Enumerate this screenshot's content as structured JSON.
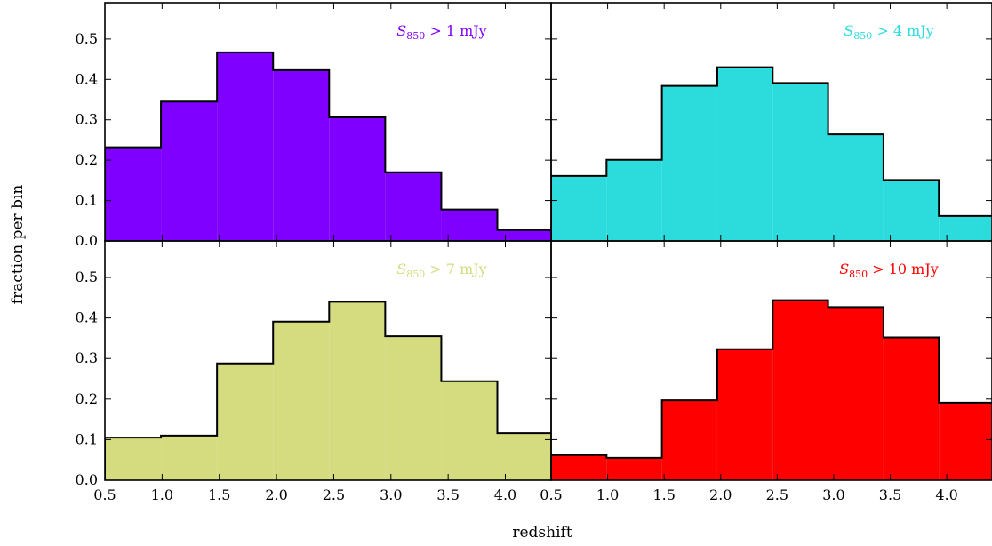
{
  "chart_data": {
    "type": "bar",
    "xlabel": "redshift",
    "ylabel": "fraction per bin",
    "xlim": [
      0.5,
      4.4
    ],
    "ylim": [
      0.0,
      0.59
    ],
    "bin_edges": [
      0.5,
      0.99,
      1.48,
      1.97,
      2.46,
      2.95,
      3.44,
      3.93,
      4.42
    ],
    "x_ticks": [
      "0.5",
      "1.0",
      "1.5",
      "2.0",
      "2.5",
      "3.0",
      "3.5",
      "4.0"
    ],
    "x_tick_values": [
      0.5,
      1.0,
      1.5,
      2.0,
      2.5,
      3.0,
      3.5,
      4.0
    ],
    "y_ticks": [
      "0.0",
      "0.1",
      "0.2",
      "0.3",
      "0.4",
      "0.5"
    ],
    "y_tick_values": [
      0.0,
      0.1,
      0.2,
      0.3,
      0.4,
      0.5
    ],
    "panels": [
      {
        "label_sub": "850",
        "label_rest": " > 1 mJy",
        "color": "#7f00ff",
        "values": [
          0.232,
          0.345,
          0.467,
          0.423,
          0.306,
          0.17,
          0.078,
          0.027
        ]
      },
      {
        "label_sub": "850",
        "label_rest": " > 4 mJy",
        "color": "#2cdcdc",
        "values": [
          0.161,
          0.201,
          0.384,
          0.43,
          0.391,
          0.264,
          0.151,
          0.062
        ]
      },
      {
        "label_sub": "850",
        "label_rest": " > 7 mJy",
        "color": "#d4dc7f",
        "values": [
          0.105,
          0.11,
          0.288,
          0.391,
          0.44,
          0.355,
          0.244,
          0.116
        ]
      },
      {
        "label_sub": "850",
        "label_rest": " > 10 mJy",
        "color": "#ff0000",
        "values": [
          0.062,
          0.055,
          0.197,
          0.323,
          0.444,
          0.427,
          0.352,
          0.191
        ]
      }
    ]
  }
}
